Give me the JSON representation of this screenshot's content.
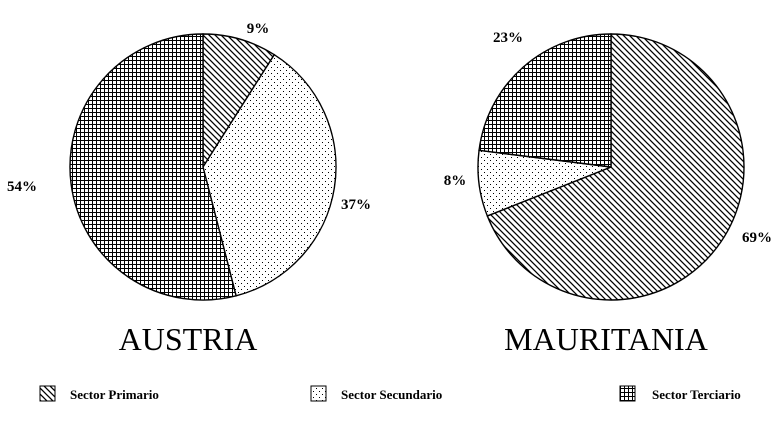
{
  "chart_data": [
    {
      "type": "pie",
      "title": "AUSTRIA",
      "slices": [
        {
          "name": "Sector Primario",
          "value": 9,
          "label": "9%"
        },
        {
          "name": "Sector Secundario",
          "value": 37,
          "label": "37%"
        },
        {
          "name": "Sector Terciario",
          "value": 54,
          "label": "54%"
        }
      ]
    },
    {
      "type": "pie",
      "title": "MAURITANIA",
      "slices": [
        {
          "name": "Sector Primario",
          "value": 69,
          "label": "69%"
        },
        {
          "name": "Sector Secundario",
          "value": 8,
          "label": "8%"
        },
        {
          "name": "Sector Terciario",
          "value": 23,
          "label": "23%"
        }
      ]
    }
  ],
  "legend": {
    "placement": "bottom",
    "items": [
      {
        "label": "Sector Primario",
        "pattern": "diagonal-hatch"
      },
      {
        "label": "Sector Secundario",
        "pattern": "dots"
      },
      {
        "label": "Sector Terciario",
        "pattern": "grid"
      }
    ]
  },
  "colors": {
    "ink": "#000000",
    "background": "#ffffff"
  }
}
